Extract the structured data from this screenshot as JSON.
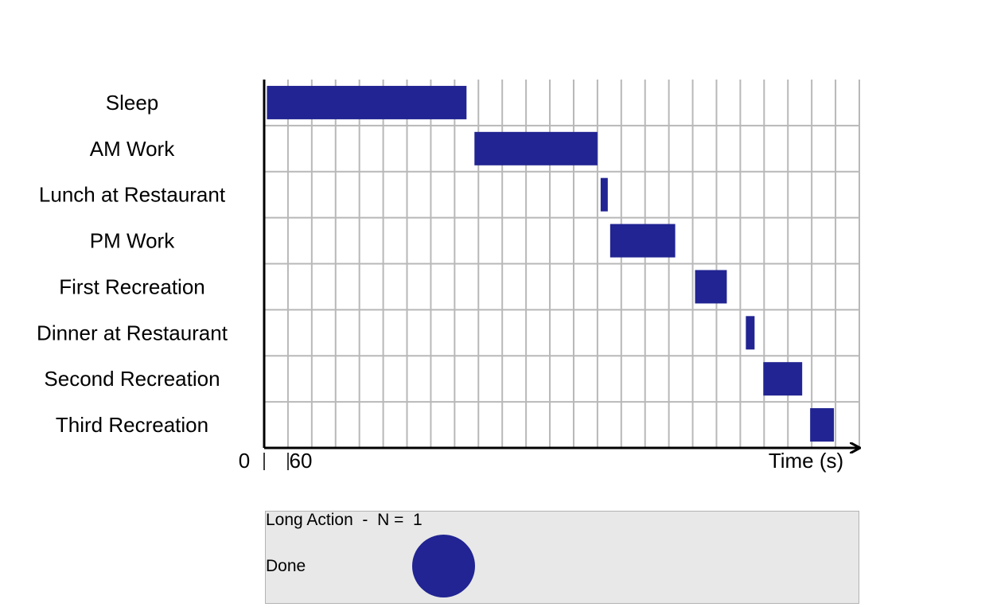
{
  "chart_data": {
    "type": "gantt",
    "xlabel": "Time (s)",
    "x_tick_labels": [
      "0",
      "60"
    ],
    "x_origin": 0,
    "x_tick_step": 60,
    "xlim": [
      0,
      1500
    ],
    "grid": true,
    "bar_color": "#212492",
    "categories": [
      "Sleep",
      "AM Work",
      "Lunch at Restaurant",
      "PM Work",
      "First Recreation",
      "Dinner at Restaurant",
      "Second Recreation",
      "Third Recreation"
    ],
    "series": [
      {
        "values": [
          [
            7,
            510
          ],
          [
            530,
            840
          ],
          [
            848,
            866
          ],
          [
            872,
            1036
          ],
          [
            1086,
            1166
          ],
          [
            1214,
            1236
          ],
          [
            1258,
            1356
          ],
          [
            1376,
            1436
          ]
        ]
      }
    ]
  },
  "panel": {
    "title": "Long Action  -  N =  1",
    "status": "Done",
    "indicator_color": "#212492"
  }
}
